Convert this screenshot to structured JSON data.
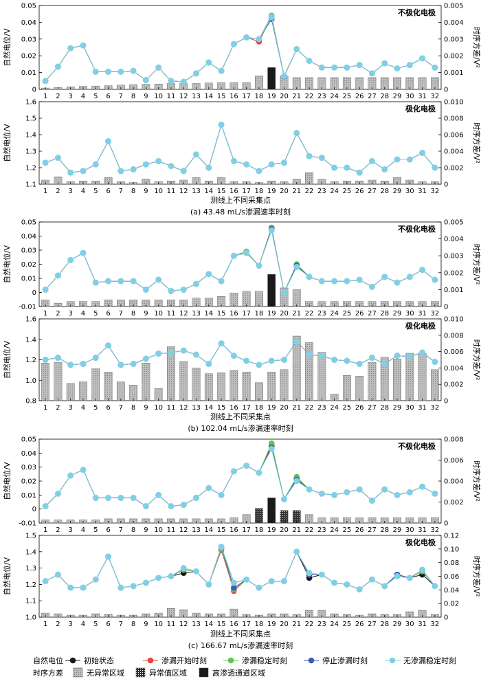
{
  "legend": {
    "potential_title": "自然电位",
    "variance_title": "时序方差",
    "series": [
      "初始状态",
      "渗漏开始时刻",
      "渗漏稳定时刻",
      "停止渗漏时刻",
      "无渗漏稳定时刻"
    ],
    "areas": [
      "无异常区域",
      "异常值区域",
      "高渗透通道区域"
    ]
  },
  "colors": {
    "series": [
      "#1a1a1a",
      "#e8453c",
      "#5cc84a",
      "#3d5bb8",
      "#7fd0e6"
    ],
    "bar_normal": "#b5b5b5",
    "bar_high": "#1a1a1a"
  },
  "chart_data": [
    {
      "type": "bar+line",
      "name": "a-top",
      "title": "不极化电极",
      "ylabel": "自然电位/V",
      "y2label": "时序方差/V²",
      "ylim": [
        0,
        0.05
      ],
      "yticks": [
        "0",
        "0.01",
        "0.02",
        "0.03",
        "0.04",
        "0.05"
      ],
      "y2lim": [
        0,
        0.005
      ],
      "y2ticks": [
        "0",
        "0.001",
        "0.002",
        "0.003",
        "0.004",
        "0.005"
      ],
      "line": [
        0.005,
        0.0135,
        0.0245,
        0.0262,
        0.0105,
        0.0105,
        0.0105,
        0.011,
        0.0055,
        0.013,
        0.005,
        0.0045,
        0.0095,
        0.016,
        0.011,
        0.027,
        0.031,
        0.03,
        0.043,
        0.008,
        0.024,
        0.017,
        0.013,
        0.013,
        0.013,
        0.0145,
        0.0095,
        0.0155,
        0.0125,
        0.0145,
        0.0185,
        0.013
      ],
      "deviation": {
        "19": [
          -0.001,
          0.0005,
          0.001,
          -0.001,
          0
        ],
        "18": [
          0,
          -0.0015,
          0,
          0,
          0
        ],
        "20": [
          0,
          0,
          0,
          -0.0003,
          0
        ]
      },
      "bars": [
        8e-05,
        0.00012,
        0.00015,
        0.00018,
        0.0002,
        0.00022,
        0.00025,
        0.00028,
        0.0003,
        0.00032,
        0.00035,
        0.00035,
        0.00035,
        0.00038,
        0.0004,
        0.0004,
        0.0004,
        0.0008,
        0.0013,
        0.0008,
        0.0007,
        0.0007,
        0.0007,
        0.0007,
        0.0007,
        0.0007,
        0.0007,
        0.0007,
        0.0007,
        0.0007,
        0.0007,
        0.0007
      ],
      "bar_types": [
        0,
        0,
        0,
        0,
        0,
        0,
        0,
        0,
        0,
        0,
        0,
        0,
        0,
        0,
        0,
        0,
        0,
        0,
        2,
        0,
        0,
        0,
        0,
        0,
        0,
        0,
        0,
        0,
        0,
        0,
        0,
        0
      ]
    },
    {
      "type": "bar+line",
      "name": "a-bottom",
      "title": "极化电极",
      "ylabel": "自然电位/V",
      "y2label": "时序方差/V²",
      "ylim": [
        1.1,
        1.6
      ],
      "yticks": [
        "1.1",
        "1.2",
        "1.3",
        "1.4",
        "1.5",
        "1.6"
      ],
      "y2lim": [
        0,
        0.01
      ],
      "y2ticks": [
        "0",
        "0.002",
        "0.004",
        "0.006",
        "0.008",
        "0.010"
      ],
      "line": [
        1.23,
        1.26,
        1.17,
        1.18,
        1.22,
        1.36,
        1.18,
        1.19,
        1.22,
        1.24,
        1.21,
        1.18,
        1.28,
        1.2,
        1.46,
        1.24,
        1.22,
        1.18,
        1.22,
        1.23,
        1.41,
        1.27,
        1.26,
        1.2,
        1.2,
        1.17,
        1.24,
        1.19,
        1.25,
        1.25,
        1.29,
        1.2
      ],
      "deviation": {},
      "bars": [
        0.0005,
        0.0009,
        0.0003,
        0.0004,
        0.0004,
        0.0008,
        0.0003,
        0.0002,
        0.0006,
        0.0003,
        0.0004,
        0.0005,
        0.0008,
        0.0004,
        0.0008,
        0.0003,
        0.0003,
        0.0002,
        0.0004,
        0.0003,
        0.0006,
        0.0014,
        0.0006,
        0.0003,
        0.0004,
        0.0004,
        0.0005,
        0.0004,
        0.0008,
        0.0005,
        0.0003,
        0.0003
      ],
      "bar_types": [
        0,
        0,
        0,
        0,
        0,
        0,
        0,
        0,
        0,
        0,
        0,
        0,
        0,
        0,
        0,
        0,
        0,
        0,
        0,
        0,
        0,
        0,
        0,
        0,
        0,
        0,
        0,
        0,
        0,
        0,
        0,
        0
      ]
    },
    {
      "type": "bar+line",
      "name": "b-top",
      "title": "不极化电极",
      "ylabel": "自然电位/V",
      "y2label": "时序方差/V²",
      "ylim": [
        -0.01,
        0.05
      ],
      "yticks": [
        "-0.01",
        "0",
        "0.01",
        "0.02",
        "0.03",
        "0.04",
        "0.05"
      ],
      "y2lim": [
        0,
        0.005
      ],
      "y2ticks": [
        "0",
        "0.001",
        "0.002",
        "0.003",
        "0.004",
        "0.005"
      ],
      "line": [
        0.002,
        0.012,
        0.023,
        0.028,
        0.007,
        0.008,
        0.008,
        0.008,
        0.002,
        0.009,
        0.001,
        0.002,
        0.006,
        0.013,
        0.008,
        0.026,
        0.028,
        0.019,
        0.045,
        0.0,
        0.019,
        0.011,
        0.008,
        0.008,
        0.008,
        0.009,
        0.004,
        0.011,
        0.007,
        0.011,
        0.016,
        0.009
      ],
      "deviation": {
        "19": [
          0,
          0.001,
          0.001,
          0,
          -0.001
        ],
        "21": [
          0,
          0.001,
          0.001,
          0,
          -0.001
        ],
        "17": [
          0,
          0.001,
          0.001,
          0,
          0
        ]
      },
      "bars": [
        0.0004,
        0.0002,
        0.0003,
        0.0003,
        0.0003,
        0.0004,
        0.0004,
        0.0004,
        0.0004,
        0.0004,
        0.0004,
        0.0004,
        0.0005,
        0.0005,
        0.0006,
        0.0008,
        0.0009,
        0.0009,
        0.0019,
        0.0011,
        0.001,
        0.0003,
        0.0003,
        0.0003,
        0.0003,
        0.0003,
        0.0003,
        0.0003,
        0.0003,
        0.0003,
        0.0003,
        0.0003
      ],
      "bar_types": [
        0,
        0,
        0,
        0,
        0,
        0,
        0,
        0,
        0,
        0,
        0,
        0,
        0,
        0,
        0,
        0,
        0,
        0,
        2,
        0,
        0,
        0,
        0,
        0,
        0,
        0,
        0,
        0,
        0,
        0,
        0,
        0
      ]
    },
    {
      "type": "bar+line",
      "name": "b-bottom",
      "title": "极化电极",
      "ylabel": "自然电位/V",
      "y2label": "时序方差/V²",
      "ylim": [
        0.8,
        1.6
      ],
      "yticks": [
        "0.8",
        "1.0",
        "1.2",
        "1.4",
        "1.6"
      ],
      "y2lim": [
        0,
        0.01
      ],
      "y2ticks": [
        "0",
        "0.002",
        "0.004",
        "0.006",
        "0.008",
        "0.010"
      ],
      "line": [
        1.2,
        1.22,
        1.15,
        1.16,
        1.22,
        1.34,
        1.15,
        1.16,
        1.21,
        1.26,
        1.27,
        1.29,
        1.25,
        1.16,
        1.36,
        1.24,
        1.19,
        1.15,
        1.19,
        1.2,
        1.38,
        1.25,
        1.24,
        1.2,
        1.19,
        1.16,
        1.22,
        1.16,
        1.24,
        1.23,
        1.27,
        1.18
      ],
      "deviation": {},
      "bars": [
        0.0046,
        0.0047,
        0.0021,
        0.0023,
        0.0039,
        0.0035,
        0.0023,
        0.0019,
        0.0046,
        0.0015,
        0.0066,
        0.0048,
        0.004,
        0.0033,
        0.0034,
        0.0037,
        0.0035,
        0.0022,
        0.0035,
        0.0038,
        0.0079,
        0.0071,
        0.0059,
        0.0008,
        0.0031,
        0.003,
        0.0047,
        0.0053,
        0.0051,
        0.0058,
        0.0058,
        0.0038
      ],
      "bar_types": [
        0,
        0,
        0,
        0,
        0,
        0,
        0,
        0,
        0,
        0,
        0,
        0,
        0,
        0,
        0,
        0,
        0,
        0,
        0,
        0,
        0,
        0,
        0,
        0,
        0,
        0,
        0,
        0,
        0,
        0,
        0,
        0
      ]
    },
    {
      "type": "bar+line",
      "name": "c-top",
      "title": "不极化电极",
      "ylabel": "自然电位/V",
      "y2label": "时序方差/V²",
      "ylim": [
        -0.01,
        0.05
      ],
      "yticks": [
        "-0.01",
        "0",
        "0.01",
        "0.02",
        "0.03",
        "0.04",
        "0.05"
      ],
      "y2lim": [
        0,
        0.008
      ],
      "y2ticks": [
        "0",
        "0.002",
        "0.004",
        "0.006",
        "0.008"
      ],
      "line": [
        0.002,
        0.011,
        0.024,
        0.028,
        0.008,
        0.008,
        0.008,
        0.008,
        0.002,
        0.01,
        0.002,
        0.003,
        0.008,
        0.015,
        0.01,
        0.027,
        0.031,
        0.026,
        0.045,
        0.007,
        0.021,
        0.014,
        0.011,
        0.01,
        0.012,
        0.014,
        0.006,
        0.014,
        0.01,
        0.012,
        0.016,
        0.011
      ],
      "deviation": {
        "19": [
          0,
          0.001,
          0.002,
          -0.001,
          -0.002
        ],
        "21": [
          0,
          0.001,
          0.002,
          0,
          -0.001
        ]
      },
      "bars": [
        0.0003,
        0.0003,
        0.0003,
        0.0003,
        0.0003,
        0.0004,
        0.0004,
        0.0004,
        0.0004,
        0.0004,
        0.0004,
        0.0004,
        0.0004,
        0.0004,
        0.0004,
        0.0005,
        0.0008,
        0.0014,
        0.0024,
        0.0012,
        0.0012,
        0.0008,
        0.0005,
        0.0005,
        0.0005,
        0.0005,
        0.0005,
        0.0005,
        0.0005,
        0.0005,
        0.0005,
        0.0005
      ],
      "bar_types": [
        0,
        0,
        0,
        0,
        0,
        0,
        0,
        0,
        0,
        0,
        0,
        0,
        0,
        0,
        0,
        0,
        0,
        1,
        2,
        1,
        1,
        0,
        0,
        0,
        0,
        0,
        0,
        0,
        0,
        0,
        0,
        0
      ]
    },
    {
      "type": "bar+line",
      "name": "c-bottom",
      "title": "极化电极",
      "ylabel": "自然电位/V",
      "y2label": "时序方差/V²",
      "ylim": [
        1.0,
        1.5
      ],
      "yticks": [
        "1.0",
        "1.1",
        "1.2",
        "1.3",
        "1.4",
        "1.5"
      ],
      "y2lim": [
        0,
        0.12
      ],
      "y2ticks": [
        "0",
        "0.02",
        "0.04",
        "0.06",
        "0.08",
        "0.10",
        "0.12"
      ],
      "line": [
        1.22,
        1.26,
        1.18,
        1.18,
        1.23,
        1.37,
        1.18,
        1.19,
        1.21,
        1.24,
        1.25,
        1.29,
        1.28,
        1.2,
        1.43,
        1.2,
        1.23,
        1.18,
        1.22,
        1.22,
        1.4,
        1.26,
        1.26,
        1.21,
        1.2,
        1.17,
        1.23,
        1.19,
        1.25,
        1.24,
        1.28,
        1.19
      ],
      "deviation": {
        "16": [
          0.01,
          -0.04,
          -0.03,
          -0.02,
          0.01
        ],
        "15": [
          0,
          -0.02,
          -0.01,
          0,
          0
        ],
        "12": [
          -0.02,
          0,
          0,
          0.01,
          0.01
        ],
        "31": [
          -0.02,
          0,
          0,
          0.01,
          0.01
        ],
        "29": [
          0.01,
          0,
          0,
          0.01,
          0
        ],
        "22": [
          -0.02,
          0,
          0,
          0,
          0.01
        ]
      },
      "bars": [
        0.006,
        0.005,
        0.003,
        0.003,
        0.005,
        0.004,
        0.003,
        0.003,
        0.005,
        0.006,
        0.013,
        0.011,
        0.006,
        0.005,
        0.005,
        0.012,
        0.004,
        0.003,
        0.005,
        0.005,
        0.004,
        0.01,
        0.01,
        0.005,
        0.004,
        0.003,
        0.005,
        0.004,
        0.004,
        0.008,
        0.01,
        0.004
      ],
      "bar_types": [
        0,
        0,
        0,
        0,
        0,
        0,
        0,
        0,
        0,
        0,
        0,
        0,
        0,
        0,
        0,
        0,
        0,
        0,
        0,
        0,
        0,
        0,
        0,
        0,
        0,
        0,
        0,
        0,
        0,
        0,
        0,
        0
      ]
    }
  ],
  "xlabel": "测线上不同采集点",
  "xticks": [
    "1",
    "2",
    "3",
    "4",
    "5",
    "6",
    "7",
    "8",
    "9",
    "10",
    "11",
    "12",
    "13",
    "14",
    "15",
    "16",
    "17",
    "18",
    "19",
    "20",
    "21",
    "22",
    "23",
    "24",
    "25",
    "26",
    "27",
    "28",
    "29",
    "30",
    "31",
    "32"
  ],
  "captions": [
    "(a)  43.48 mL/s渗漏速率时刻",
    "(b)  102.04 mL/s渗漏速率时刻",
    "(c)  166.67 mL/s渗漏速率时刻"
  ]
}
